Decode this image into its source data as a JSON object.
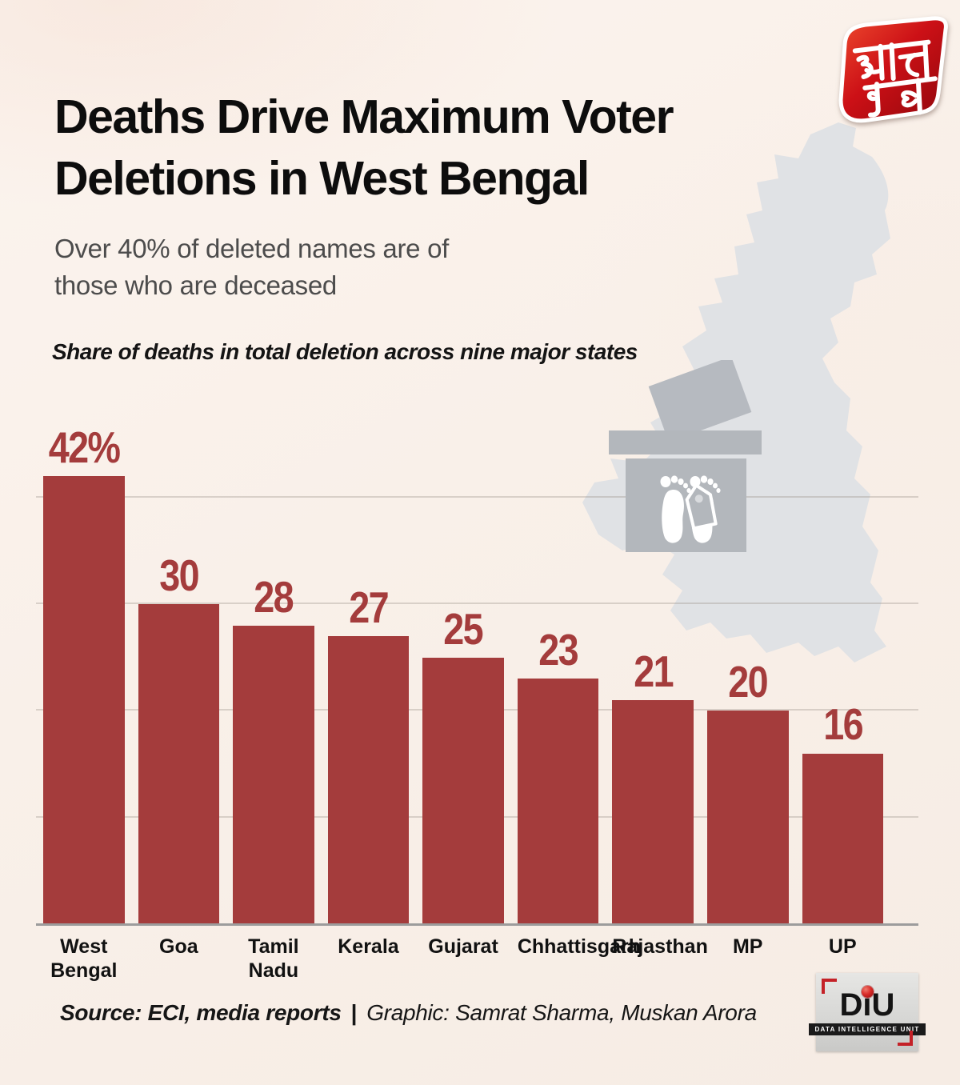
{
  "brand": {
    "logo_text": "आज तक",
    "diu": {
      "wordmark": "DiU",
      "tagline": "DATA INTELLIGENCE UNIT"
    }
  },
  "header": {
    "title_line1": "Deaths Drive Maximum Voter",
    "title_line2": "Deletions in West Bengal",
    "subtitle_line1": "Over 40% of deleted names are of",
    "subtitle_line2": "those who are deceased"
  },
  "chart_data": {
    "type": "bar",
    "title": "Share of deaths in total deletion across nine major states",
    "categories": [
      "West Bengal",
      "Goa",
      "Tamil Nadu",
      "Kerala",
      "Gujarat",
      "Chhattisgarh",
      "Rajasthan",
      "MP",
      "UP"
    ],
    "category_lines": [
      [
        "West",
        "Bengal"
      ],
      [
        "Goa"
      ],
      [
        "Tamil",
        "Nadu"
      ],
      [
        "Kerala"
      ],
      [
        "Gujarat"
      ],
      [
        "Chhattisgarh"
      ],
      [
        "Rajasthan"
      ],
      [
        "MP"
      ],
      [
        "UP"
      ]
    ],
    "values": [
      42,
      30,
      28,
      27,
      25,
      23,
      21,
      20,
      16
    ],
    "value_labels": [
      "42%",
      "30",
      "28",
      "27",
      "25",
      "23",
      "21",
      "20",
      "16"
    ],
    "unit": "percent of total voter deletions",
    "xlabel": "",
    "ylabel": "",
    "ylim": [
      0,
      45
    ],
    "gridlines": [
      10,
      20,
      30,
      40
    ],
    "grid": true,
    "legend": false,
    "bar_color": "#a43c3c"
  },
  "footer": {
    "source": "Source: ECI, media reports",
    "separator": "|",
    "credit": "Graphic: Samrat Sharma, Muskan Arora"
  },
  "colors": {
    "background": "#f9f0e9",
    "bar_red": "#a43c3c",
    "title_black": "#0d0d0d",
    "subtitle_gray": "#4c4c4c",
    "map_gray": "#e0e2e5",
    "ballot_gray": "#b3b7bc",
    "baseline_gray": "#9c9c9c",
    "brand_red": "#cc1016"
  }
}
